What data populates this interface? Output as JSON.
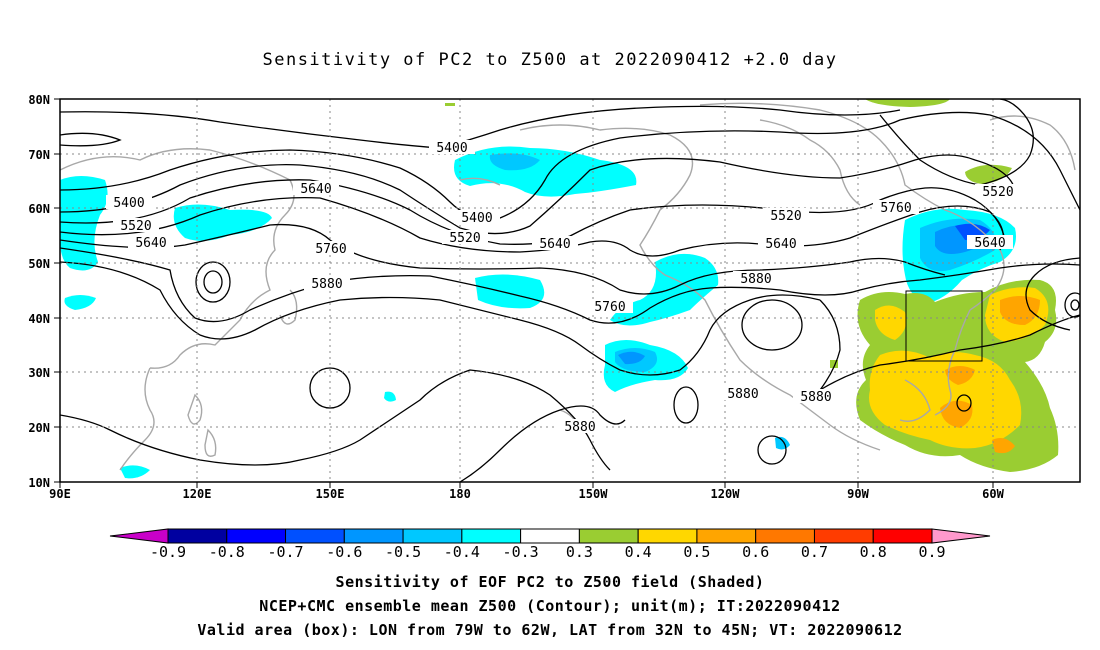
{
  "title": "Sensitivity of PC2 to Z500 at 2022090412 +2.0 day",
  "lat_labels": [
    "80N",
    "70N",
    "60N",
    "50N",
    "40N",
    "30N",
    "20N",
    "10N"
  ],
  "lon_labels": [
    "90E",
    "120E",
    "150E",
    "180",
    "150W",
    "120W",
    "90W",
    "60W"
  ],
  "contour_labels": [
    {
      "text": "5400"
    },
    {
      "text": "5400"
    },
    {
      "text": "5400"
    },
    {
      "text": "5520"
    },
    {
      "text": "5520"
    },
    {
      "text": "5520"
    },
    {
      "text": "5520"
    },
    {
      "text": "5640"
    },
    {
      "text": "5640"
    },
    {
      "text": "5640"
    },
    {
      "text": "5640"
    },
    {
      "text": "5640"
    },
    {
      "text": "5760"
    },
    {
      "text": "5760"
    },
    {
      "text": "5760"
    },
    {
      "text": "5880"
    },
    {
      "text": "5880"
    },
    {
      "text": "5880"
    },
    {
      "text": "5880"
    },
    {
      "text": "5880"
    }
  ],
  "colorbar": {
    "labels": [
      "-0.9",
      "-0.8",
      "-0.7",
      "-0.6",
      "-0.5",
      "-0.4",
      "-0.3",
      "0.3",
      "0.4",
      "0.5",
      "0.6",
      "0.7",
      "0.8",
      "0.9"
    ],
    "colors": [
      "#c800c8",
      "#0000a0",
      "#0000ff",
      "#0050ff",
      "#0096ff",
      "#00c8ff",
      "#00ffff",
      "#ffffff",
      "#9acd32",
      "#ffd700",
      "#ffa500",
      "#ff7800",
      "#ff3c00",
      "#ff0000",
      "#ff99cc"
    ]
  },
  "valid_box": {
    "lon_min": "79W",
    "lon_max": "62W",
    "lat_min": "32N",
    "lat_max": "45N"
  },
  "captions": [
    "Sensitivity of EOF PC2 to Z500 field (Shaded)",
    "NCEP+CMC ensemble mean Z500 (Contour); unit(m); IT:2022090412",
    "Valid area (box): LON from 79W to 62W, LAT from 32N to 45N; VT: 2022090612"
  ]
}
